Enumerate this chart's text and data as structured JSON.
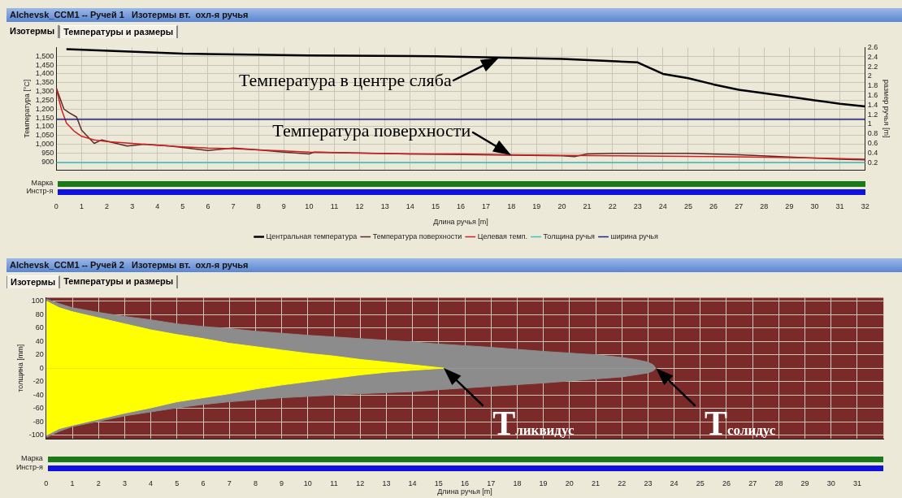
{
  "chart_data": [
    {
      "type": "line",
      "title": "Alchevsk_CCM1 -- Ручей 1   Изотермы вт.  охл-я ручья",
      "xlabel": "Длина ручья [m]",
      "ylabel": "Температура [°C]",
      "y2label": "размер ручья [m]",
      "xlim": [
        0,
        32
      ],
      "xticks": [
        0,
        1,
        2,
        3,
        4,
        5,
        6,
        7,
        8,
        9,
        10,
        11,
        12,
        13,
        14,
        15,
        16,
        17,
        18,
        19,
        20,
        21,
        22,
        23,
        24,
        25,
        26,
        27,
        28,
        29,
        30,
        31,
        32
      ],
      "ylim": [
        855,
        1550
      ],
      "yticks": [
        900,
        950,
        {
          "value": 1000,
          "label": "1,000"
        },
        {
          "value": 1050,
          "label": "1,050"
        },
        {
          "value": 1100,
          "label": "1,100"
        },
        {
          "value": 1150,
          "label": "1,150"
        },
        {
          "value": 1200,
          "label": "1,200"
        },
        {
          "value": 1250,
          "label": "1,250"
        },
        {
          "value": 1300,
          "label": "1,300"
        },
        {
          "value": 1350,
          "label": "1,350"
        },
        {
          "value": 1400,
          "label": "1,400"
        },
        {
          "value": 1450,
          "label": "1,450"
        },
        {
          "value": 1500,
          "label": "1,500"
        }
      ],
      "y2lim": [
        0.05,
        2.6
      ],
      "y2ticks": [
        0.2,
        0.4,
        0.6,
        0.8,
        1,
        1.2,
        1.4,
        1.6,
        1.8,
        2,
        2.2,
        2.4,
        2.6
      ],
      "grid": true,
      "legend": "bottom",
      "marker": "none",
      "series": [
        {
          "name": "Центральная температура",
          "color": "#000000",
          "x": [
            0.4,
            5,
            10,
            15,
            20,
            23,
            23.3,
            24,
            25,
            26,
            27,
            28,
            29,
            30,
            31,
            32
          ],
          "values": [
            1540,
            1515,
            1505,
            1500,
            1485,
            1465,
            1445,
            1400,
            1375,
            1340,
            1310,
            1290,
            1270,
            1250,
            1230,
            1215
          ]
        },
        {
          "name": "Температура поверхности",
          "color": "#5a2a2a",
          "x": [
            0,
            0.3,
            0.5,
            0.8,
            1,
            1.2,
            1.5,
            1.8,
            2.5,
            2.8,
            3.5,
            4.5,
            6,
            7,
            8,
            9,
            10,
            10.2,
            14,
            20,
            20.5,
            21,
            22,
            25,
            27,
            29,
            31,
            32
          ],
          "values": [
            1320,
            1200,
            1180,
            1155,
            1080,
            1050,
            1005,
            1025,
            1000,
            990,
            1000,
            990,
            965,
            978,
            968,
            955,
            945,
            955,
            945,
            935,
            930,
            945,
            948,
            948,
            940,
            928,
            915,
            912
          ]
        },
        {
          "name": "Целевая темп.",
          "color": "#d02020",
          "x": [
            0,
            0.2,
            0.4,
            0.7,
            1,
            1.5,
            2,
            3,
            4,
            5,
            6,
            7,
            8,
            9,
            10,
            12,
            14,
            16,
            18,
            20,
            22,
            24,
            26,
            28,
            30,
            32
          ],
          "values": [
            1315,
            1200,
            1120,
            1075,
            1045,
            1025,
            1015,
            1005,
            995,
            985,
            978,
            975,
            968,
            962,
            955,
            950,
            945,
            945,
            940,
            937,
            935,
            932,
            930,
            927,
            922,
            915
          ]
        },
        {
          "name": "Толщина ручья",
          "color": "#40c0c0",
          "axis": "y2",
          "x": [
            0,
            32
          ],
          "values": [
            0.2,
            0.2
          ]
        },
        {
          "name": "ширина ручья",
          "color": "#202080",
          "axis": "y2",
          "x": [
            0,
            32
          ],
          "values": [
            1.1,
            1.1
          ]
        }
      ],
      "annotations": [
        "Изотермы",
        "Температуры и размеры",
        "Марка",
        "Инстр-я",
        {
          "text": "Температура в центре сляба",
          "x": 17.5,
          "y": 1490
        },
        {
          "text": "Температура поверхности",
          "x": 18,
          "y": 940
        }
      ]
    },
    {
      "type": "area",
      "title": "Alchevsk_CCM1 -- Ручей 2   Изотермы вт.  охл-я ручья",
      "xlabel": "Длина ручья [m]",
      "ylabel": "толщина [mm]",
      "xlim": [
        0,
        32
      ],
      "xticks": [
        0,
        1,
        2,
        3,
        4,
        5,
        6,
        7,
        8,
        9,
        10,
        11,
        12,
        13,
        14,
        15,
        16,
        17,
        18,
        19,
        20,
        21,
        22,
        23,
        24,
        25,
        26,
        27,
        28,
        29,
        30,
        31
      ],
      "ylim": [
        -105,
        105
      ],
      "yticks": [
        -100,
        -80,
        -60,
        -40,
        -20,
        0,
        20,
        40,
        60,
        80,
        100
      ],
      "grid": true,
      "marker": "none",
      "bands": [
        {
          "axis": "y",
          "from": -105,
          "to": 105,
          "color": "#7b2a2a"
        }
      ],
      "series": [
        {
          "color": "#8c8c8c",
          "x": [
            0,
            0.5,
            1,
            2,
            3,
            4,
            5,
            6,
            7,
            8,
            9,
            10,
            12,
            14,
            15,
            17,
            19,
            21,
            22,
            22.5,
            23,
            23.2,
            23.3
          ],
          "values": [
            103,
            96,
            90,
            83,
            77,
            72,
            66,
            62,
            59,
            55,
            52,
            49,
            44,
            39,
            36,
            31,
            25,
            20,
            16,
            13,
            9,
            5,
            0
          ]
        },
        {
          "color": "#8c8c8c",
          "x": [
            0,
            0.5,
            1,
            2,
            3,
            4,
            5,
            6,
            7,
            8,
            9,
            10,
            12,
            14,
            15,
            17,
            19,
            21,
            22,
            22.5,
            23,
            23.2,
            23.3
          ],
          "values": [
            -103,
            -94,
            -87,
            -79,
            -71,
            -65,
            -59,
            -54,
            -50,
            -47,
            -44,
            -42,
            -38,
            -35,
            -32,
            -27,
            -22,
            -16,
            -13,
            -10,
            -7,
            -4,
            0
          ]
        },
        {
          "color": "#ffff00",
          "x": [
            0,
            0.5,
            1,
            2,
            3,
            4,
            5,
            6,
            7,
            8,
            9,
            10,
            11,
            12,
            13,
            14,
            15.2
          ],
          "values": [
            100,
            90,
            84,
            75,
            66,
            57,
            50,
            44,
            37,
            32,
            27,
            22,
            18,
            13,
            9,
            5,
            0
          ]
        },
        {
          "color": "#ffff00",
          "x": [
            0,
            0.5,
            1,
            2,
            3,
            4,
            5,
            6,
            7,
            8,
            9,
            10,
            11,
            12,
            13,
            14,
            15.2
          ],
          "values": [
            -100,
            -90,
            -85,
            -76,
            -67,
            -59,
            -50,
            -44,
            -38,
            -31,
            -25,
            -20,
            -15,
            -10,
            -6,
            -3,
            0
          ]
        }
      ],
      "annotations": [
        "Изотермы",
        "Температуры и размеры",
        "Марка",
        "Инстр-я",
        {
          "text": "T$_{ликвидус}$",
          "x": 15.2,
          "y": 0
        },
        {
          "text": "T$_{солидус}$",
          "x": 23.3,
          "y": 0
        }
      ]
    }
  ]
}
